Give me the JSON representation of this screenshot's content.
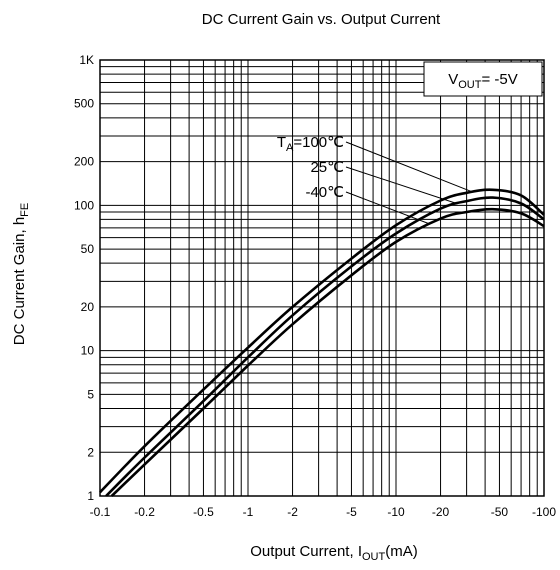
{
  "chart_data": {
    "type": "line",
    "title": "DC Current Gain vs. Output Current",
    "xlabel": {
      "main": "Output Current, I",
      "sub": "OUT",
      "suffix": "(mA)"
    },
    "ylabel": {
      "main": "DC Current Gain, h",
      "sub": "FE"
    },
    "x_scale": "log",
    "y_scale": "log",
    "x_axis_note": "magnitude axis; tick labels show negative output current",
    "xlim": [
      -0.1,
      -100
    ],
    "ylim": [
      1,
      1000
    ],
    "grid": true,
    "x_ticks": [
      {
        "value": 0.1,
        "label": "-0.1"
      },
      {
        "value": 0.2,
        "label": "-0.2"
      },
      {
        "value": 0.5,
        "label": "-0.5"
      },
      {
        "value": 1,
        "label": "-1"
      },
      {
        "value": 2,
        "label": "-2"
      },
      {
        "value": 5,
        "label": "-5"
      },
      {
        "value": 10,
        "label": "-10"
      },
      {
        "value": 20,
        "label": "-20"
      },
      {
        "value": 50,
        "label": "-50"
      },
      {
        "value": 100,
        "label": "-100"
      }
    ],
    "y_ticks": [
      {
        "value": 1,
        "label": "1"
      },
      {
        "value": 2,
        "label": "2"
      },
      {
        "value": 5,
        "label": "5"
      },
      {
        "value": 10,
        "label": "10"
      },
      {
        "value": 20,
        "label": "20"
      },
      {
        "value": 50,
        "label": "50"
      },
      {
        "value": 100,
        "label": "100"
      },
      {
        "value": 200,
        "label": "200"
      },
      {
        "value": 500,
        "label": "500"
      },
      {
        "value": 1000,
        "label": "1K"
      }
    ],
    "condition_box": {
      "main": "V",
      "sub": "OUT",
      "suffix": "= -5V"
    },
    "series_label_prefix": {
      "main": "T",
      "sub": "A",
      "suffix": "="
    },
    "series": [
      {
        "label": "100℃",
        "x": [
          0.1,
          0.2,
          0.5,
          1,
          2,
          5,
          10,
          20,
          30,
          45,
          70,
          100
        ],
        "y": [
          1.06,
          2.2,
          5.4,
          10.5,
          20,
          43,
          73,
          108,
          122,
          128,
          117,
          86
        ]
      },
      {
        "label": "25℃",
        "x": [
          0.11,
          0.2,
          0.5,
          1,
          2,
          5,
          10,
          20,
          30,
          45,
          70,
          100
        ],
        "y": [
          1.0,
          1.84,
          4.5,
          9,
          17.5,
          38,
          64,
          95,
          107,
          113,
          103,
          80
        ]
      },
      {
        "label": "-40℃",
        "x": [
          0.12,
          0.2,
          0.5,
          1,
          2,
          5,
          10,
          20,
          30,
          45,
          70,
          100
        ],
        "y": [
          1.0,
          1.65,
          4.0,
          7.9,
          15.2,
          33,
          56,
          81,
          90,
          94,
          88,
          72
        ]
      }
    ]
  }
}
